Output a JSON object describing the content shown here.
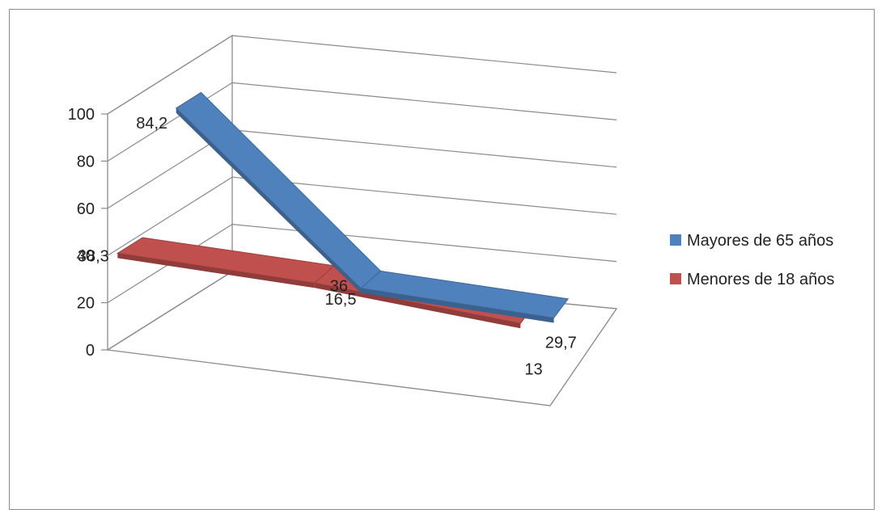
{
  "chart_data": {
    "type": "line",
    "style": "3d-ribbon",
    "title": "",
    "xlabel": "",
    "ylabel": "",
    "ylim": [
      0,
      100
    ],
    "yticks": [
      0,
      20,
      40,
      60,
      80,
      100
    ],
    "ytick_labels": [
      "0",
      "20",
      "40",
      "60",
      "80",
      "100"
    ],
    "grid": true,
    "legend": "right",
    "series": [
      {
        "name": "Mayores de 65 años",
        "color": "#4F81BD",
        "values": [
          84.2,
          16.5,
          13
        ],
        "labels": [
          "84,2",
          "16,5",
          "13"
        ]
      },
      {
        "name": "Menores de 18 años",
        "color": "#C0504D",
        "values": [
          38.3,
          36,
          29.7
        ],
        "labels": [
          "38,3",
          "36",
          "29,7"
        ]
      }
    ]
  }
}
